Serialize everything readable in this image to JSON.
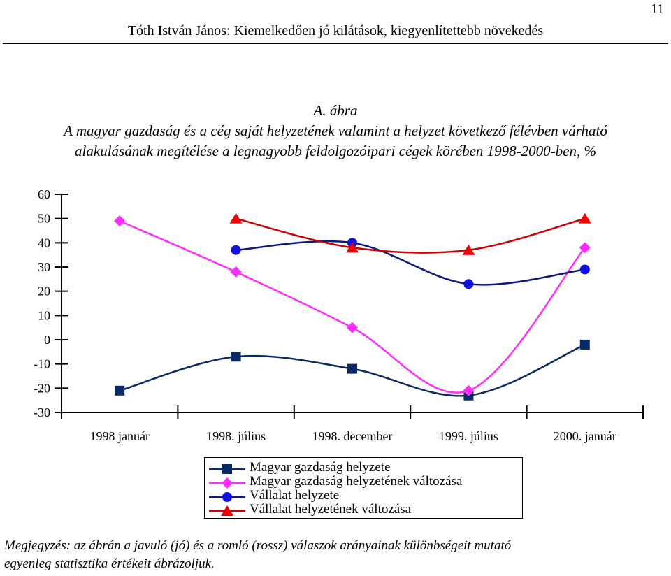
{
  "page": {
    "number": "11",
    "running_header": "Tóth István János: Kiemelkedően jó kilátások, kiegyenlítettebb növekedés"
  },
  "figure": {
    "label": "A. ábra",
    "title_line1": "A magyar gazdaság és a cég saját helyzetének valamint a helyzet következő félévben várható",
    "title_line2": "alakulásának megítélése a legnagyobb feldolgozóipari cégek körében 1998-2000-ben, %",
    "note_line1": "Megjegyzés: az ábrán a javuló (jó) és a romló (rossz) válaszok arányainak különbségeit mutató",
    "note_line2": "egyenleg statisztika értékeit ábrázoljuk."
  },
  "chart_data": {
    "type": "line",
    "smooth": true,
    "categories": [
      "1998 január",
      "1998. július",
      "1998. december",
      "1999. július",
      "2000. január"
    ],
    "y_ticks": [
      "60",
      "50",
      "40",
      "30",
      "20",
      "10",
      "0",
      "-10",
      "-20",
      "-30"
    ],
    "ylim": [
      -30,
      60
    ],
    "grid": false,
    "legend_position": "bottom",
    "series": [
      {
        "name": "Magyar gazdaság helyzete",
        "marker": "square",
        "color": "#0a2a66",
        "values": [
          -21,
          -7,
          -12,
          -23,
          -2
        ]
      },
      {
        "name": "Magyar gazdaság helyzetének változása",
        "marker": "diamond",
        "color": "#ff2cff",
        "values": [
          49,
          28,
          5,
          -21,
          38
        ]
      },
      {
        "name": "Vállalat helyzete",
        "marker": "circle",
        "color": "#1010e0",
        "line_color": "#0a1a80",
        "values": [
          null,
          37,
          40,
          23,
          29
        ]
      },
      {
        "name": "Vállalat helyzetének változása",
        "marker": "triangle",
        "color": "#ee0000",
        "line_color": "#cc0000",
        "values": [
          null,
          50,
          38,
          37,
          50
        ]
      }
    ]
  }
}
